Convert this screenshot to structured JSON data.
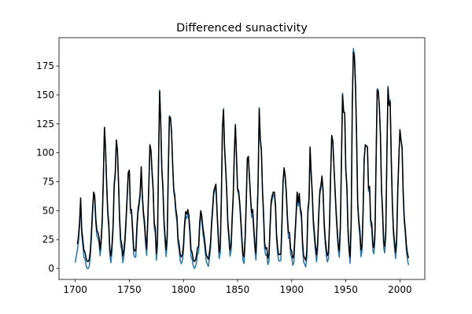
{
  "chart_data": {
    "type": "line",
    "title": "Differenced sunactivity",
    "x": [
      1700,
      1701,
      1702,
      1703,
      1704,
      1705,
      1706,
      1707,
      1708,
      1709,
      1710,
      1711,
      1712,
      1713,
      1714,
      1715,
      1716,
      1717,
      1718,
      1719,
      1720,
      1721,
      1722,
      1723,
      1724,
      1725,
      1726,
      1727,
      1728,
      1729,
      1730,
      1731,
      1732,
      1733,
      1734,
      1735,
      1736,
      1737,
      1738,
      1739,
      1740,
      1741,
      1742,
      1743,
      1744,
      1745,
      1746,
      1747,
      1748,
      1749,
      1750,
      1751,
      1752,
      1753,
      1754,
      1755,
      1756,
      1757,
      1758,
      1759,
      1760,
      1761,
      1762,
      1763,
      1764,
      1765,
      1766,
      1767,
      1768,
      1769,
      1770,
      1771,
      1772,
      1773,
      1774,
      1775,
      1776,
      1777,
      1778,
      1779,
      1780,
      1781,
      1782,
      1783,
      1784,
      1785,
      1786,
      1787,
      1788,
      1789,
      1790,
      1791,
      1792,
      1793,
      1794,
      1795,
      1796,
      1797,
      1798,
      1799,
      1800,
      1801,
      1802,
      1803,
      1804,
      1805,
      1806,
      1807,
      1808,
      1809,
      1810,
      1811,
      1812,
      1813,
      1814,
      1815,
      1816,
      1817,
      1818,
      1819,
      1820,
      1821,
      1822,
      1823,
      1824,
      1825,
      1826,
      1827,
      1828,
      1829,
      1830,
      1831,
      1832,
      1833,
      1834,
      1835,
      1836,
      1837,
      1838,
      1839,
      1840,
      1841,
      1842,
      1843,
      1844,
      1845,
      1846,
      1847,
      1848,
      1849,
      1850,
      1851,
      1852,
      1853,
      1854,
      1855,
      1856,
      1857,
      1858,
      1859,
      1860,
      1861,
      1862,
      1863,
      1864,
      1865,
      1866,
      1867,
      1868,
      1869,
      1870,
      1871,
      1872,
      1873,
      1874,
      1875,
      1876,
      1877,
      1878,
      1879,
      1880,
      1881,
      1882,
      1883,
      1884,
      1885,
      1886,
      1887,
      1888,
      1889,
      1890,
      1891,
      1892,
      1893,
      1894,
      1895,
      1896,
      1897,
      1898,
      1899,
      1900,
      1901,
      1902,
      1903,
      1904,
      1905,
      1906,
      1907,
      1908,
      1909,
      1910,
      1911,
      1912,
      1913,
      1914,
      1915,
      1916,
      1917,
      1918,
      1919,
      1920,
      1921,
      1922,
      1923,
      1924,
      1925,
      1926,
      1927,
      1928,
      1929,
      1930,
      1931,
      1932,
      1933,
      1934,
      1935,
      1936,
      1937,
      1938,
      1939,
      1940,
      1941,
      1942,
      1943,
      1944,
      1945,
      1946,
      1947,
      1948,
      1949,
      1950,
      1951,
      1952,
      1953,
      1954,
      1955,
      1956,
      1957,
      1958,
      1959,
      1960,
      1961,
      1962,
      1963,
      1964,
      1965,
      1966,
      1967,
      1968,
      1969,
      1970,
      1971,
      1972,
      1973,
      1974,
      1975,
      1976,
      1977,
      1978,
      1979,
      1980,
      1981,
      1982,
      1983,
      1984,
      1985,
      1986,
      1987,
      1988,
      1989,
      1990,
      1991,
      1992,
      1993,
      1994,
      1995,
      1996,
      1997,
      1998,
      1999,
      2000,
      2001,
      2002,
      2003,
      2004,
      2005,
      2006,
      2007,
      2008
    ],
    "series": [
      {
        "color": "#1f77b4",
        "values": [
          5,
          11,
          16,
          23,
          36,
          58,
          29,
          20,
          10,
          8,
          3,
          0,
          0,
          2,
          11,
          27,
          47,
          63,
          60,
          39,
          28,
          26,
          22,
          11,
          21,
          40,
          78,
          122,
          103,
          73,
          47,
          35,
          11,
          5,
          16,
          34,
          70,
          81,
          111,
          101,
          73,
          40,
          20,
          16,
          5,
          11,
          22,
          40,
          60,
          80.9,
          83.4,
          47.7,
          47.8,
          30.7,
          12.2,
          9.6,
          10.2,
          32.4,
          47.6,
          54,
          62.9,
          85.9,
          61.2,
          45.1,
          36.4,
          20.9,
          11.4,
          37.8,
          69.8,
          106.1,
          100.8,
          81.6,
          66.5,
          34.8,
          30.6,
          7,
          19.8,
          92.5,
          154.4,
          125.9,
          84.8,
          68.1,
          38.5,
          22.8,
          10.2,
          24.1,
          82.9,
          132,
          130.9,
          118.1,
          89.9,
          66.6,
          60,
          46.9,
          41,
          21.3,
          16,
          6.4,
          4.1,
          6.8,
          14.5,
          34,
          45,
          43.1,
          47.5,
          42.2,
          28.1,
          10.1,
          8.1,
          2.5,
          0,
          1.4,
          5,
          12.2,
          13.9,
          35.4,
          45.8,
          41.1,
          30.1,
          23.9,
          15.6,
          6.6,
          4,
          1.8,
          8.5,
          16.6,
          36.3,
          49.6,
          64.2,
          67,
          70.9,
          47.8,
          27.5,
          8.5,
          13.2,
          56.9,
          121.5,
          138.3,
          103.2,
          85.7,
          64.6,
          36.7,
          24.2,
          10.7,
          15,
          40.1,
          61.5,
          98.5,
          124.7,
          96.3,
          66.6,
          64.5,
          54.1,
          39,
          20.6,
          6.7,
          4.3,
          22.7,
          54.8,
          93.8,
          95.8,
          77.2,
          59.1,
          44,
          47,
          30.5,
          16.3,
          7.3,
          37.6,
          74,
          139,
          111.2,
          101.6,
          66.2,
          44.7,
          17,
          11.3,
          12.4,
          3.4,
          6,
          32.3,
          54.3,
          59.7,
          63.7,
          63.5,
          52.2,
          25.4,
          13.1,
          6.8,
          6.3,
          7.1,
          35.6,
          73,
          85.1,
          78,
          64,
          41.8,
          26.2,
          26.7,
          12.1,
          9.5,
          2.7,
          5,
          24.4,
          42,
          63.5,
          53.8,
          62,
          48.5,
          43.9,
          18.6,
          5.7,
          3.6,
          1.4,
          9.6,
          47.4,
          57.1,
          103.9,
          80.6,
          63.6,
          37.6,
          26.1,
          14.2,
          5.8,
          16.7,
          44.3,
          63.9,
          69,
          77.8,
          64.9,
          35.7,
          21.2,
          11.1,
          5.7,
          8.7,
          36.1,
          79.7,
          114.4,
          109.6,
          88.8,
          67.8,
          47.5,
          30.6,
          16.3,
          9.6,
          33.2,
          92.6,
          151.6,
          136.3,
          134.7,
          83.9,
          69.4,
          31.5,
          13.9,
          4.4,
          38,
          141.7,
          190.2,
          184.8,
          159,
          112.3,
          53.9,
          37.6,
          27.9,
          10.2,
          15.1,
          47,
          93.8,
          105.9,
          105.5,
          104.5,
          66.6,
          68.9,
          38,
          34.5,
          15.5,
          12.6,
          27.5,
          92.5,
          155.4,
          154.6,
          140.4,
          115.9,
          66.6,
          45.9,
          17.9,
          13.4,
          29.4,
          100.2,
          157.6,
          142.6,
          145.7,
          94.3,
          54.6,
          29.9,
          17.5,
          8.6,
          21.5,
          64.3,
          93.3,
          119.6,
          111,
          104,
          63.7,
          40.4,
          29.8,
          15.2,
          7.5,
          2.9
        ]
      },
      {
        "color": "#000000",
        "values": [
          null,
          null,
          21,
          28,
          40,
          61,
          34,
          25,
          16,
          14,
          9,
          6,
          6,
          8,
          16,
          32,
          51,
          66,
          63,
          43,
          33,
          31,
          27,
          16,
          26,
          44,
          80,
          122,
          104,
          75,
          51,
          39,
          16,
          11,
          21,
          38,
          73,
          83,
          111,
          102,
          75,
          44,
          25,
          21,
          11,
          16,
          27,
          44,
          63,
          83,
          85,
          51,
          51,
          35,
          18,
          15,
          16,
          37,
          51,
          57,
          66,
          88,
          64,
          49,
          41,
          26,
          17,
          42,
          72,
          107,
          102,
          84,
          69,
          39,
          35,
          13,
          25,
          94,
          153,
          126,
          87,
          71,
          43,
          28,
          16,
          29,
          85,
          131,
          130,
          118,
          91,
          69,
          63,
          51,
          45,
          26,
          21,
          12,
          10,
          12,
          20,
          38,
          49,
          47,
          51,
          46,
          33,
          16,
          14,
          8,
          6,
          7,
          11,
          18,
          19,
          40,
          50,
          45,
          35,
          29,
          21,
          12,
          10,
          8,
          14,
          22,
          40,
          53,
          67,
          70,
          73,
          51,
          32,
          14,
          19,
          60,
          121,
          137,
          104,
          87,
          67,
          41,
          29,
          16,
          20,
          44,
          64,
          100,
          124,
          97,
          69,
          67,
          57,
          43,
          26,
          12,
          10,
          28,
          58,
          95,
          97,
          79,
          62,
          48,
          51,
          35,
          21,
          13,
          42,
          76,
          138,
          112,
          103,
          69,
          48,
          22,
          17,
          18,
          9,
          12,
          37,
          58,
          63,
          66,
          66,
          56,
          30,
          18,
          12,
          12,
          13,
          40,
          75,
          87,
          80,
          67,
          46,
          31,
          31,
          17,
          15,
          9,
          11,
          29,
          46,
          66,
          57,
          65,
          52,
          48,
          24,
          11,
          9,
          7,
          15,
          51,
          60,
          105,
          83,
          66,
          42,
          31,
          19,
          12,
          22,
          48,
          67,
          72,
          80,
          68,
          40,
          26,
          17,
          11,
          14,
          40,
          82,
          115,
          110,
          90,
          70,
          51,
          35,
          21,
          15,
          38,
          94,
          150,
          135,
          134,
          86,
          72,
          36,
          19,
          10,
          42,
          141,
          187,
          182,
          157,
          113,
          57,
          42,
          33,
          16,
          20,
          51,
          95,
          107,
          106,
          105,
          69,
          71,
          42,
          39,
          21,
          18,
          32,
          94,
          154,
          153,
          139,
          116,
          69,
          50,
          23,
          19,
          34,
          101,
          156,
          141,
          144,
          96,
          58,
          34,
          23,
          14,
          26,
          67,
          95,
          120,
          111,
          105,
          67,
          44,
          34,
          20,
          13,
          9
        ]
      }
    ],
    "xlim": [
      1685,
      2023
    ],
    "xticks": [
      1700,
      1750,
      1800,
      1850,
      1900,
      1950,
      2000
    ],
    "ylim": [
      -9.5,
      199.5
    ],
    "yticks": [
      0,
      25,
      50,
      75,
      100,
      125,
      150,
      175
    ]
  }
}
